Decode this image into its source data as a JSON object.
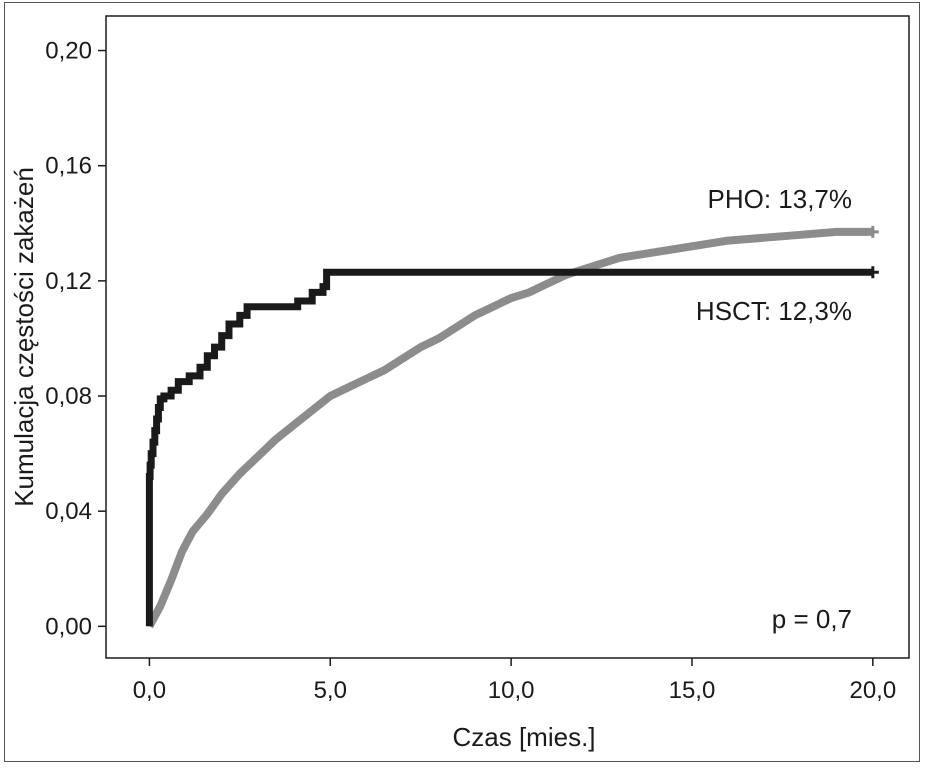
{
  "chart_data": {
    "type": "line",
    "xlabel": "Czas [mies.]",
    "ylabel": "Kumulacja częstości zakażeń",
    "xlim": [
      -1.2,
      21.0
    ],
    "ylim": [
      -0.011,
      0.212
    ],
    "x_ticks": [
      0,
      5,
      10,
      15,
      20
    ],
    "x_tick_labels": [
      "0,0",
      "5,0",
      "10,0",
      "15,0",
      "20,0"
    ],
    "y_ticks": [
      0,
      0.04,
      0.08,
      0.12,
      0.16,
      0.2
    ],
    "y_tick_labels": [
      "0,00",
      "0,04",
      "0,08",
      "0,12",
      "0,16",
      "0,20"
    ],
    "grid": false,
    "series": [
      {
        "name": "HSCT",
        "color": "#1a1a1a",
        "step": true,
        "x": [
          0.0,
          0.0,
          0.02,
          0.05,
          0.1,
          0.15,
          0.2,
          0.25,
          0.3,
          0.4,
          0.6,
          0.8,
          1.1,
          1.4,
          1.6,
          1.8,
          2.0,
          2.2,
          2.5,
          2.7,
          4.1,
          4.5,
          4.8,
          4.9,
          20.0
        ],
        "y": [
          0.0,
          0.052,
          0.056,
          0.06,
          0.064,
          0.068,
          0.072,
          0.076,
          0.079,
          0.08,
          0.082,
          0.085,
          0.087,
          0.09,
          0.094,
          0.097,
          0.101,
          0.105,
          0.108,
          0.111,
          0.113,
          0.116,
          0.118,
          0.123,
          0.123
        ]
      },
      {
        "name": "PHO",
        "color": "#8c8c8c",
        "step": false,
        "x": [
          0.0,
          0.3,
          0.6,
          0.9,
          1.2,
          1.6,
          2.0,
          2.5,
          3.0,
          3.5,
          4.0,
          4.5,
          5.0,
          5.5,
          6.0,
          6.5,
          7.0,
          7.5,
          8.0,
          8.5,
          9.0,
          9.5,
          10.0,
          10.5,
          11.0,
          11.5,
          12.0,
          12.5,
          13.0,
          14.0,
          15.0,
          16.0,
          17.0,
          18.0,
          19.0,
          20.0
        ],
        "y": [
          0.0,
          0.007,
          0.016,
          0.026,
          0.033,
          0.039,
          0.046,
          0.053,
          0.059,
          0.065,
          0.07,
          0.075,
          0.08,
          0.083,
          0.086,
          0.089,
          0.093,
          0.097,
          0.1,
          0.104,
          0.108,
          0.111,
          0.114,
          0.116,
          0.119,
          0.122,
          0.124,
          0.126,
          0.128,
          0.13,
          0.132,
          0.134,
          0.135,
          0.136,
          0.137,
          0.137
        ]
      }
    ],
    "annotations": [
      {
        "text": "PHO: 13,7%",
        "series": "PHO"
      },
      {
        "text": "HSCT: 12,3%",
        "series": "HSCT"
      },
      {
        "text": "p = 0,7",
        "position": "bottom-right"
      }
    ]
  }
}
